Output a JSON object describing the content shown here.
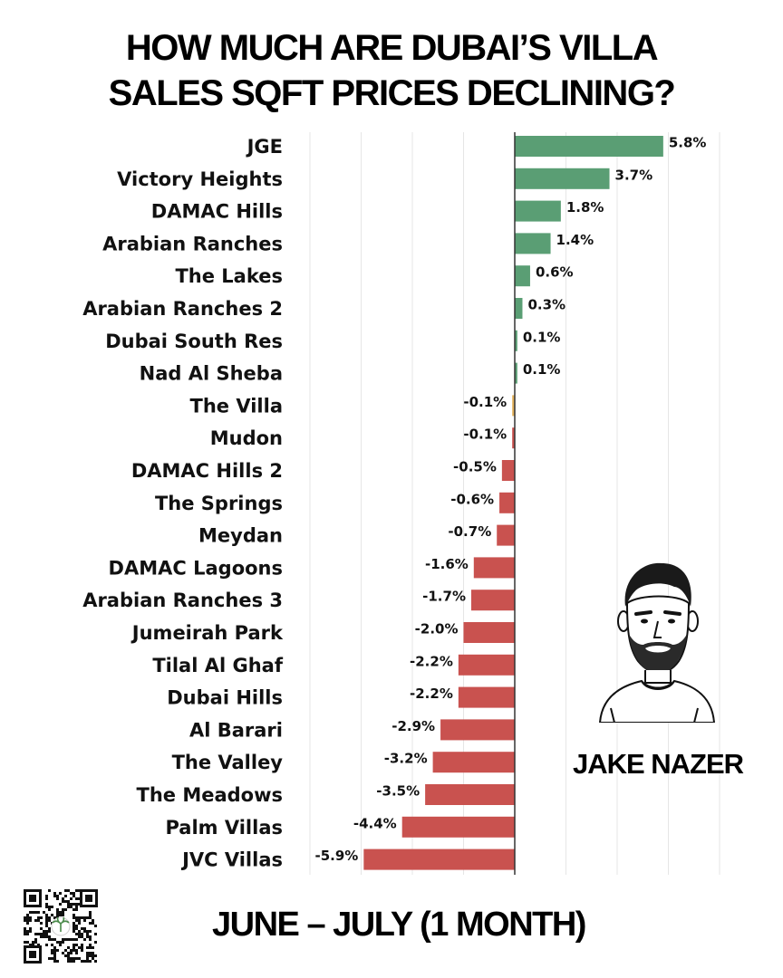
{
  "title_lines": [
    "HOW MUCH ARE DUBAI’S VILLA",
    "SALES SQFT PRICES DECLINING?"
  ],
  "footer": "JUNE – JULY (1 MONTH)",
  "author": {
    "name": "JAKE NAZER"
  },
  "colors": {
    "positive": "#5a9e74",
    "negative": "#c9524f",
    "near_zero": "#e3b25c",
    "grid": "#e6e6e6",
    "axis": "#333333"
  },
  "chart_data": {
    "type": "bar",
    "orientation": "horizontal",
    "categories": [
      "JGE",
      "Victory Heights",
      "DAMAC Hills",
      "Arabian Ranches",
      "The Lakes",
      "Arabian Ranches 2",
      "Dubai South Res",
      "Nad Al Sheba",
      "The Villa",
      "Mudon",
      "DAMAC Hills 2",
      "The Springs",
      "Meydan",
      "DAMAC Lagoons",
      "Arabian Ranches 3",
      "Jumeirah Park",
      "Tilal Al Ghaf",
      "Dubai Hills",
      "Al Barari",
      "The Valley",
      "The Meadows",
      "Palm Villas",
      "JVC Villas"
    ],
    "values": [
      5.8,
      3.7,
      1.8,
      1.4,
      0.6,
      0.3,
      0.1,
      0.1,
      -0.1,
      -0.1,
      -0.5,
      -0.6,
      -0.7,
      -1.6,
      -1.7,
      -2.0,
      -2.2,
      -2.2,
      -2.9,
      -3.2,
      -3.5,
      -4.4,
      -5.9
    ],
    "value_labels": [
      "5.8%",
      "3.7%",
      "1.8%",
      "1.4%",
      "0.6%",
      "0.3%",
      "0.1%",
      "0.1%",
      "-0.1%",
      "-0.1%",
      "-0.5%",
      "-0.6%",
      "-0.7%",
      "-1.6%",
      "-1.7%",
      "-2.0%",
      "-2.2%",
      "-2.2%",
      "-2.9%",
      "-3.2%",
      "-3.5%",
      "-4.4%",
      "-5.9%"
    ],
    "xlim": [
      -8,
      8
    ],
    "grid": true,
    "legend": "none"
  }
}
